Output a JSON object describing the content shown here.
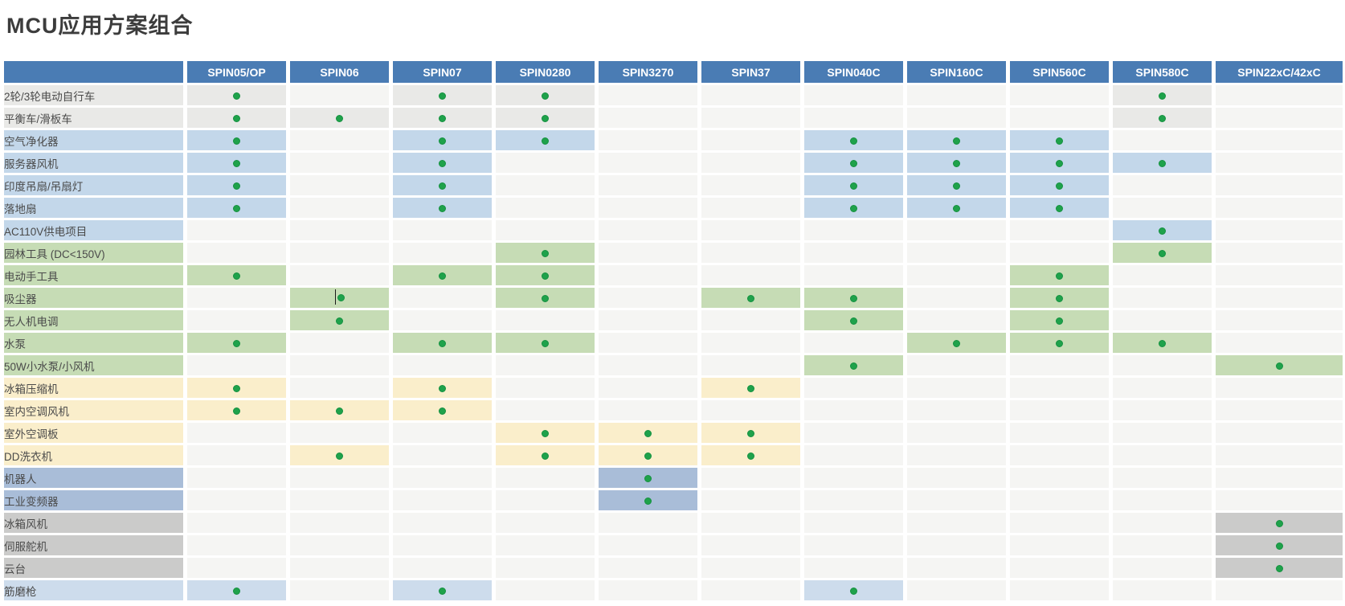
{
  "title": "MCU应用方案组合",
  "style": {
    "title_color": "#3c3c3c",
    "header_bg": "#4a7cb4",
    "header_text_color": "#ffffff",
    "default_cell_bg": "#f5f5f3",
    "label_text_color": "#4a4a4a",
    "dot_color": "#1fa24b",
    "dot_border_color": "#159140",
    "group_colors": {
      "gray": "#e9e9e7",
      "blue": "#c3d7ea",
      "green": "#c6dcb5",
      "cream": "#faeecb",
      "periwinkle": "#a9bdd8",
      "darkgray": "#cbcbca",
      "lightblue": "#cddcec"
    }
  },
  "cursor_artifact": {
    "row_index": 9,
    "col_index": 1
  },
  "chart_data": {
    "type": "table",
    "title": "MCU应用方案组合",
    "legend": "green dot = MCU supports this application; cell and row-label share a per-category highlight color",
    "columns": [
      "SPIN05/OP",
      "SPIN06",
      "SPIN07",
      "SPIN0280",
      "SPIN3270",
      "SPIN37",
      "SPIN040C",
      "SPIN160C",
      "SPIN560C",
      "SPIN580C",
      "SPIN22xC/42xC"
    ],
    "rows": [
      {
        "label": "2轮/3轮电动自行车",
        "group": "gray",
        "dots": [
          0,
          2,
          3,
          9
        ]
      },
      {
        "label": "平衡车/滑板车",
        "group": "gray",
        "dots": [
          0,
          1,
          2,
          3,
          9
        ]
      },
      {
        "label": "空气净化器",
        "group": "blue",
        "dots": [
          0,
          2,
          3,
          6,
          7,
          8
        ]
      },
      {
        "label": "服务器风机",
        "group": "blue",
        "dots": [
          0,
          2,
          6,
          7,
          8,
          9
        ]
      },
      {
        "label": "印度吊扇/吊扇灯",
        "group": "blue",
        "dots": [
          0,
          2,
          6,
          7,
          8
        ]
      },
      {
        "label": "落地扇",
        "group": "blue",
        "dots": [
          0,
          2,
          6,
          7,
          8
        ]
      },
      {
        "label": "AC110V供电项目",
        "group": "blue",
        "dots": [
          9
        ]
      },
      {
        "label": "园林工具 (DC<150V)",
        "group": "green",
        "dots": [
          3,
          9
        ]
      },
      {
        "label": "电动手工具",
        "group": "green",
        "dots": [
          0,
          2,
          3,
          8
        ]
      },
      {
        "label": "吸尘器",
        "group": "green",
        "dots": [
          1,
          3,
          5,
          6,
          8
        ]
      },
      {
        "label": "无人机电调",
        "group": "green",
        "dots": [
          1,
          6,
          8
        ]
      },
      {
        "label": "水泵",
        "group": "green",
        "dots": [
          0,
          2,
          3,
          7,
          8,
          9
        ]
      },
      {
        "label": "50W小水泵/小风机",
        "group": "green",
        "dots": [
          6,
          10
        ]
      },
      {
        "label": "冰箱压缩机",
        "group": "cream",
        "dots": [
          0,
          2,
          5
        ]
      },
      {
        "label": "室内空调风机",
        "group": "cream",
        "dots": [
          0,
          1,
          2
        ]
      },
      {
        "label": "室外空调板",
        "group": "cream",
        "dots": [
          3,
          4,
          5
        ]
      },
      {
        "label": "DD洗衣机",
        "group": "cream",
        "dots": [
          1,
          3,
          4,
          5
        ]
      },
      {
        "label": "机器人",
        "group": "periwinkle",
        "dots": [
          4
        ]
      },
      {
        "label": "工业变频器",
        "group": "periwinkle",
        "dots": [
          4
        ]
      },
      {
        "label": "冰箱风机",
        "group": "darkgray",
        "dots": [
          10
        ]
      },
      {
        "label": "伺服舵机",
        "group": "darkgray",
        "dots": [
          10
        ]
      },
      {
        "label": "云台",
        "group": "darkgray",
        "dots": [
          10
        ]
      },
      {
        "label": "筋磨枪",
        "group": "lightblue",
        "dots": [
          0,
          2,
          6
        ]
      }
    ]
  }
}
